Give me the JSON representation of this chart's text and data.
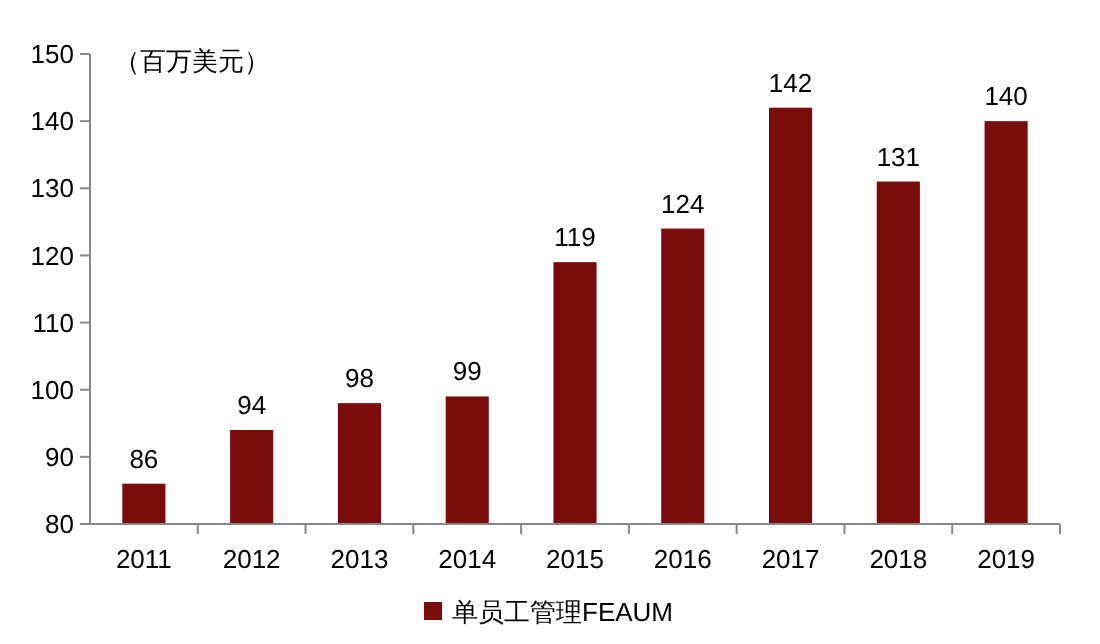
{
  "chart_data": {
    "type": "bar",
    "ylabel": "（百万美元）",
    "categories": [
      "2011",
      "2012",
      "2013",
      "2014",
      "2015",
      "2016",
      "2017",
      "2018",
      "2019"
    ],
    "series": [
      {
        "name": "单员工管理FEAUM",
        "color": "#7b0c0c",
        "values": [
          86,
          94,
          98,
          99,
          119,
          124,
          142,
          131,
          140
        ]
      }
    ],
    "ylim": [
      80,
      150
    ],
    "yticks": [
      80,
      90,
      100,
      110,
      120,
      130,
      140,
      150
    ],
    "data_labels": true,
    "grid": false,
    "legend": "bottom"
  }
}
